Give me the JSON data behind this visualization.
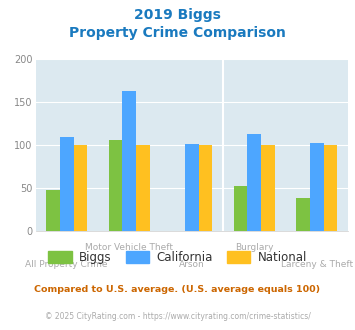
{
  "title_line1": "2019 Biggs",
  "title_line2": "Property Crime Comparison",
  "title_color": "#1a7abf",
  "categories": [
    "All Property Crime",
    "Motor Vehicle Theft",
    "Arson",
    "Burglary",
    "Larceny & Theft"
  ],
  "biggs": [
    48,
    106,
    0,
    52,
    38
  ],
  "california": [
    110,
    163,
    101,
    113,
    103
  ],
  "national": [
    100,
    100,
    100,
    100,
    100
  ],
  "biggs_color": "#7dc242",
  "california_color": "#4da6ff",
  "national_color": "#ffc020",
  "bg_color": "#dce9f0",
  "ylim": [
    0,
    200
  ],
  "yticks": [
    0,
    50,
    100,
    150,
    200
  ],
  "ytick_color": "#888888",
  "xlabel_color": "#aaaaaa",
  "legend_text_color": "#333333",
  "footnote1": "Compared to U.S. average. (U.S. average equals 100)",
  "footnote2": "© 2025 CityRating.com - https://www.cityrating.com/crime-statistics/",
  "footnote1_color": "#cc6600",
  "footnote2_color": "#aaaaaa",
  "divider_positions": [
    2.5
  ],
  "bar_width": 0.22
}
